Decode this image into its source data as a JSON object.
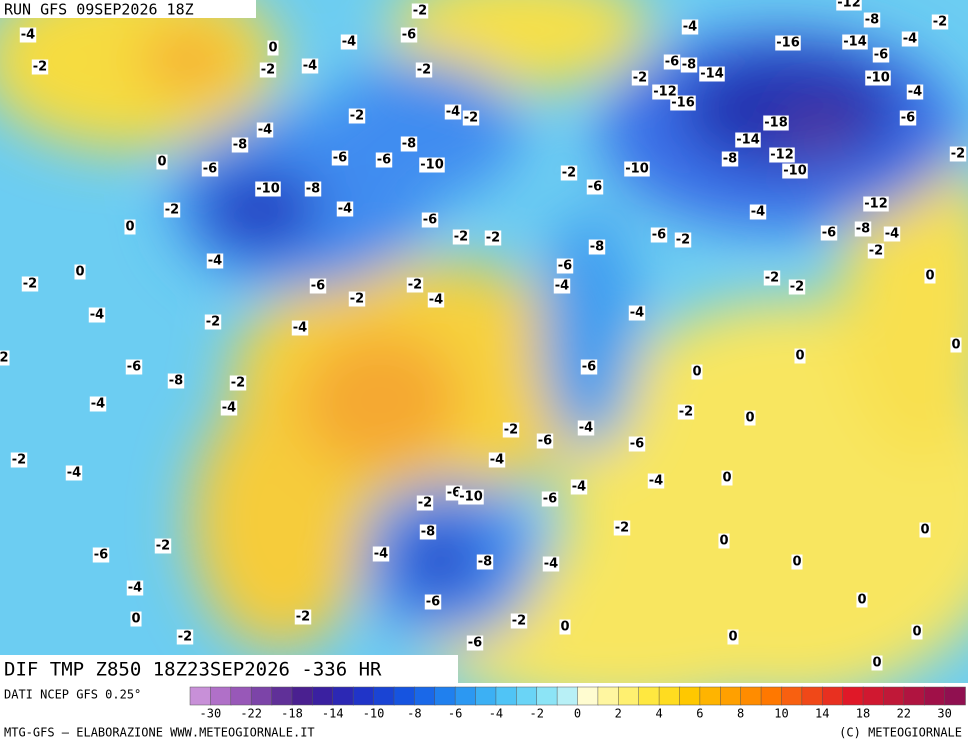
{
  "header": {
    "run": "RUN GFS 09SEP2026 18Z",
    "title": "DIF TMP Z850 18Z23SEP2026 -336 HR"
  },
  "map": {
    "labels": [
      -4,
      -2,
      0,
      -2,
      -4,
      -4,
      -6,
      -2,
      -2,
      -4,
      -2,
      -2,
      -4,
      -8,
      -6,
      0,
      -10,
      -8,
      -6,
      -6,
      -8,
      -10,
      -4,
      -6,
      -2,
      0,
      0,
      -4,
      -6,
      -2,
      -2,
      -4,
      -4,
      -2,
      -2,
      -4,
      -6,
      -8,
      -2,
      -4,
      -4,
      -2,
      -4,
      -6,
      -2,
      -4,
      0,
      -2,
      -2,
      -4,
      -8,
      -8,
      -6,
      -6,
      -2,
      -4,
      0,
      -2,
      -6,
      -10,
      -4,
      -6,
      -2,
      -6,
      -4,
      -4,
      -6,
      -4,
      -2,
      -6,
      -4,
      -6,
      -8,
      -4,
      -6,
      -2,
      -2,
      -2,
      -2,
      -6,
      -10,
      -2,
      -12,
      -16,
      -6,
      -8,
      -14,
      -4,
      -16,
      -14,
      -18,
      -8,
      -12,
      -10,
      -4,
      -6,
      -8,
      -12,
      -4,
      -2,
      -2,
      -2,
      -14,
      -8,
      -6,
      -10,
      -4,
      -2,
      -4,
      -6,
      -2,
      0,
      0,
      0,
      0,
      -2,
      0,
      0,
      0,
      0,
      0,
      0,
      0,
      0,
      0,
      -12,
      2
    ]
  },
  "colorbar": {
    "source": "DATI NCEP GFS 0.25°",
    "ticks": [
      -30,
      -22,
      -18,
      -14,
      -10,
      -8,
      -6,
      -4,
      -2,
      0,
      2,
      4,
      6,
      8,
      10,
      14,
      18,
      22,
      30
    ],
    "colors": [
      "#c890d8",
      "#b070c8",
      "#9858b8",
      "#7c44a8",
      "#603098",
      "#4a2090",
      "#3a20a0",
      "#2c28b4",
      "#2034c8",
      "#1a44d4",
      "#1654e0",
      "#1a68e8",
      "#2080ee",
      "#2c98f2",
      "#3cb0f4",
      "#50c4f6",
      "#6ad4f6",
      "#8ce4f6",
      "#b8f0f6",
      "#fffcd0",
      "#fff6a0",
      "#fff070",
      "#ffe840",
      "#ffdc20",
      "#ffc800",
      "#ffb400",
      "#ffa000",
      "#ff8c00",
      "#ff7800",
      "#f86010",
      "#f04818",
      "#e83020",
      "#e01828",
      "#d01830",
      "#c01838",
      "#b01440",
      "#a01048",
      "#901050"
    ]
  },
  "footer": {
    "left": "MTG-GFS — ELABORAZIONE WWW.METEOGIORNALE.IT",
    "right": "(C) METEOGIORNALE"
  }
}
